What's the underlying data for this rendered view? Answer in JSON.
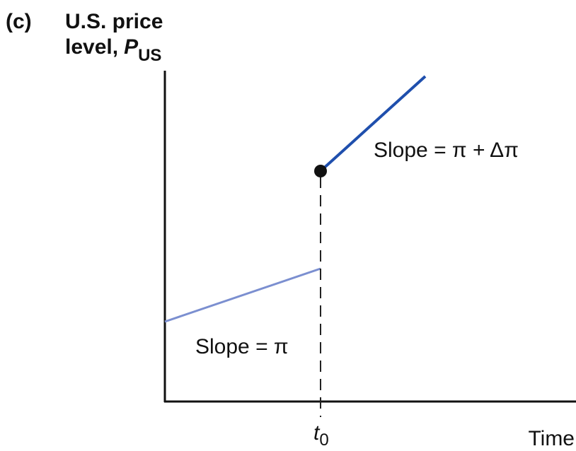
{
  "panel_label": "(c)",
  "y_axis": {
    "label_line1": "U.S. price",
    "label_line2": "level,",
    "symbol": "P",
    "subscript": "US"
  },
  "annotations": {
    "upper": "Slope = π + Δπ",
    "lower": "Slope = π"
  },
  "x_axis": {
    "marker": "t",
    "marker_subscript": "0",
    "label": "Time"
  }
}
